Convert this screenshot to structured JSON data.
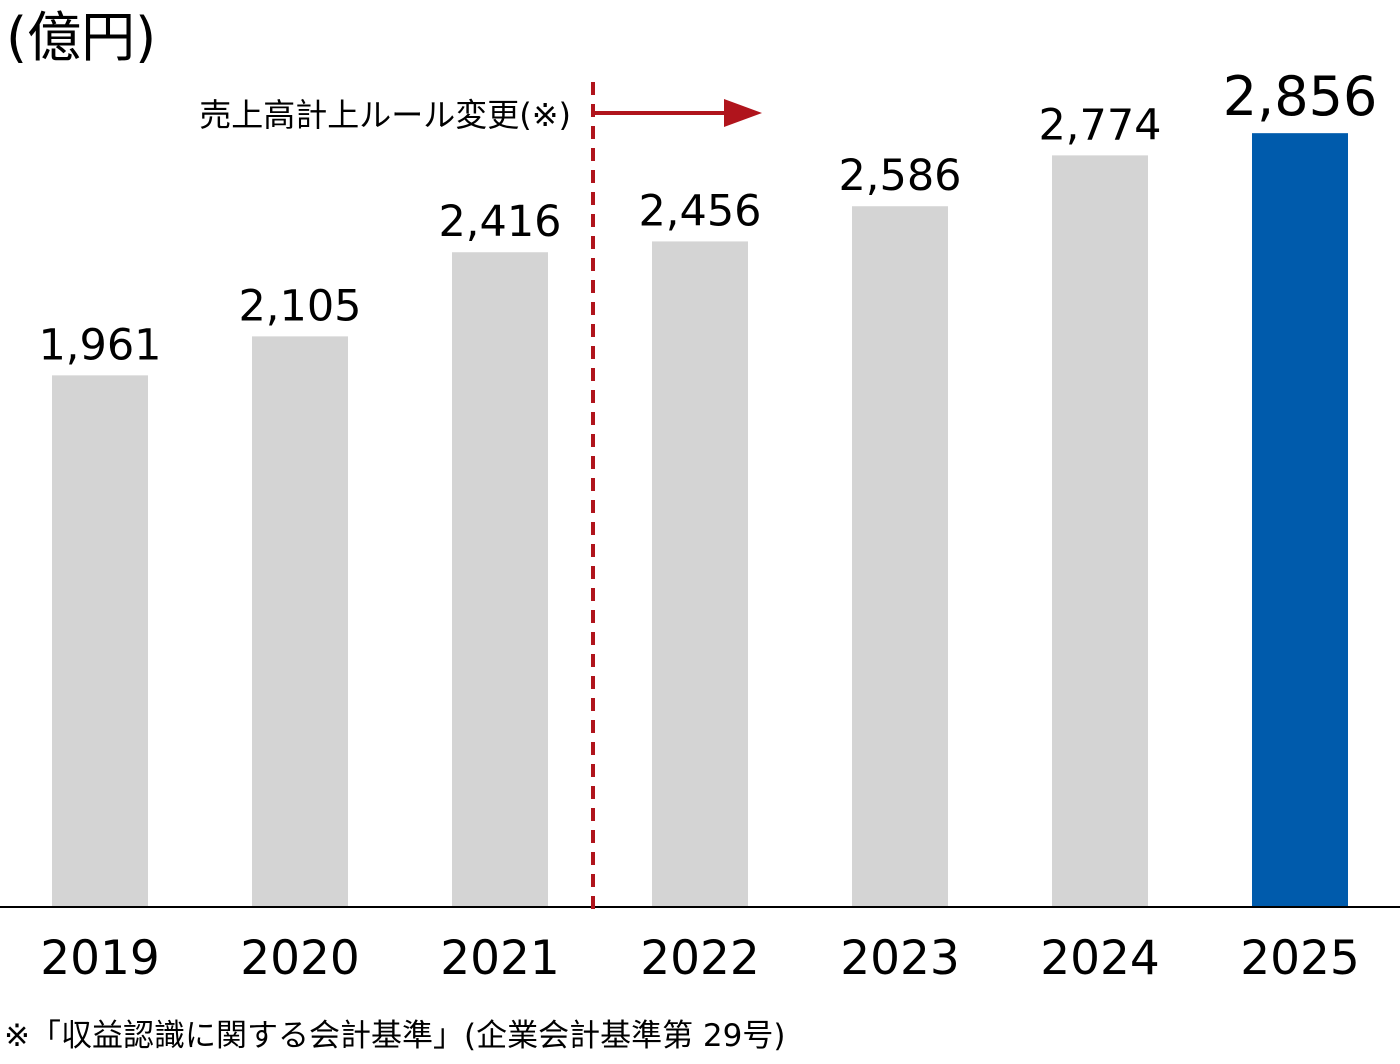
{
  "chart_data": {
    "type": "bar",
    "unit_label": "(億円)",
    "categories": [
      "2019",
      "2020",
      "2021",
      "2022",
      "2023",
      "2024",
      "2025"
    ],
    "values": [
      1961,
      2105,
      2416,
      2456,
      2586,
      2774,
      2856
    ],
    "value_labels": [
      "1,961",
      "2,105",
      "2,416",
      "2,456",
      "2,586",
      "2,774",
      "2,856"
    ],
    "ylim": [
      0,
      3000
    ],
    "grid": false,
    "highlight_index": 6,
    "annotation": {
      "text": "売上高計上ルール変更(※)",
      "between": [
        "2021",
        "2022"
      ]
    },
    "footnote": "※「収益認識に関する会計基準」(企業会計基準第 29号)"
  },
  "colors": {
    "bar": "#d4d4d4",
    "highlight_bar": "#005bac",
    "highlight_text": "#005bac",
    "annotation_line": "#b0141c",
    "axis": "#000000"
  }
}
